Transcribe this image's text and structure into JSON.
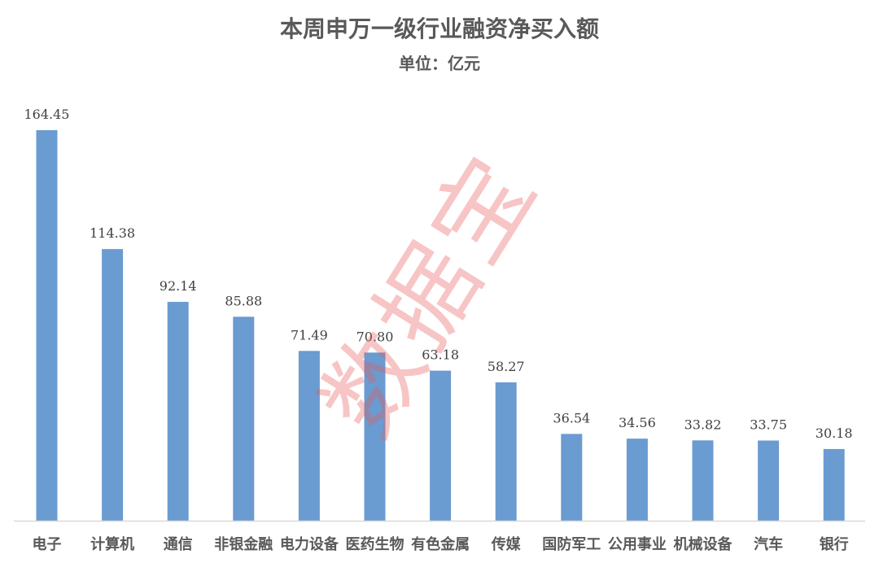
{
  "chart_data": {
    "type": "bar",
    "title": "本周申万一级行业融资净买入额",
    "subtitle": "单位：亿元",
    "categories": [
      "电子",
      "计算机",
      "通信",
      "非银金融",
      "电力设备",
      "医药生物",
      "有色金属",
      "传媒",
      "国防军工",
      "公用事业",
      "机械设备",
      "汽车",
      "银行"
    ],
    "values": [
      164.45,
      114.38,
      92.14,
      85.88,
      71.49,
      70.8,
      63.18,
      58.27,
      36.54,
      34.56,
      33.82,
      33.75,
      30.18
    ],
    "value_labels": [
      "164.45",
      "114.38",
      "92.14",
      "85.88",
      "71.49",
      "70.80",
      "63.18",
      "58.27",
      "36.54",
      "34.56",
      "33.82",
      "33.75",
      "30.18"
    ],
    "ylim": [
      0,
      164.45
    ],
    "grid": false,
    "legend": "none",
    "bar_color": "#6a9bd1",
    "watermark": "数据宝"
  }
}
